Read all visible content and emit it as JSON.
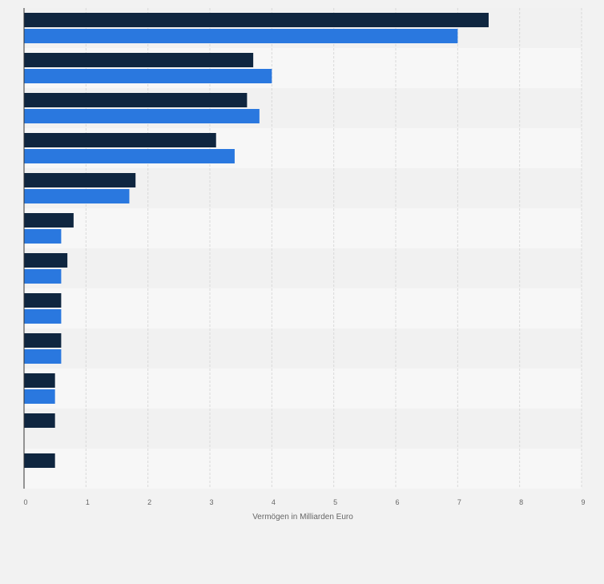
{
  "chart_data": {
    "type": "bar",
    "orientation": "horizontal",
    "categories": [
      "",
      "",
      "",
      "",
      "",
      "",
      "",
      "",
      "",
      "",
      "",
      ""
    ],
    "series": [
      {
        "color": "#0f2640",
        "values": [
          7.5,
          3.7,
          3.6,
          3.1,
          1.8,
          0.8,
          0.7,
          0.6,
          0.6,
          0.5,
          0.5,
          0.5
        ]
      },
      {
        "color": "#2a78df",
        "values": [
          7.0,
          4.0,
          3.8,
          3.4,
          1.7,
          0.6,
          0.6,
          0.6,
          0.6,
          0.5,
          null,
          null
        ]
      }
    ],
    "xlabel": "Vermögen in Milliarden Euro",
    "xlim": [
      0,
      9
    ],
    "xticks": [
      "0",
      "1",
      "2",
      "3",
      "4",
      "5",
      "6",
      "7",
      "8",
      "9"
    ],
    "grid": true,
    "legend": "none"
  }
}
